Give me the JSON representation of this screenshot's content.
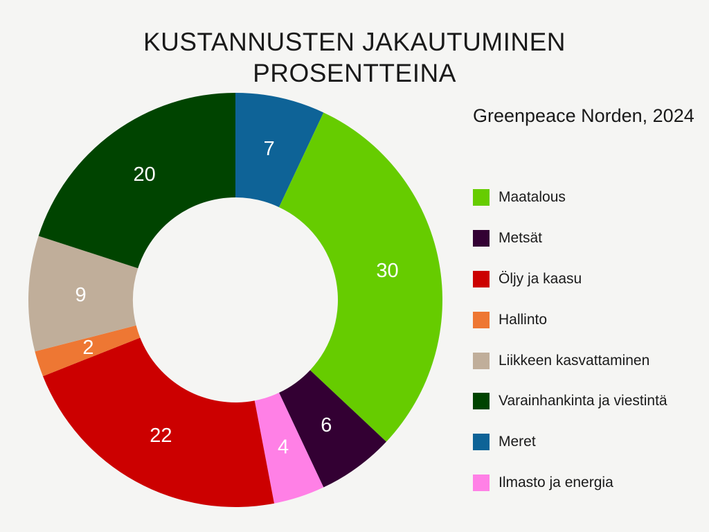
{
  "chart_data": {
    "type": "pie",
    "subtype": "donut",
    "title_lines": [
      "KUSTANNUSTEN JAKAUTUMINEN",
      "PROSENTTEINA"
    ],
    "legend_title": "Greenpeace Norden, 2024",
    "legend_position": "right",
    "slices": [
      {
        "name": "Meret",
        "value": 7,
        "color": "#0e6397"
      },
      {
        "name": "Maatalous",
        "value": 30,
        "color": "#66cc00"
      },
      {
        "name": "Metsät",
        "value": 6,
        "color": "#330033"
      },
      {
        "name": "Ilmasto ja energia",
        "value": 4,
        "color": "#ff80e6"
      },
      {
        "name": "Öljy ja kaasu",
        "value": 22,
        "color": "#cc0000"
      },
      {
        "name": "Hallinto",
        "value": 2,
        "color": "#ee7733"
      },
      {
        "name": "Liikkeen kasvattaminen",
        "value": 9,
        "color": "#c0ae9a"
      },
      {
        "name": "Varainhankinta ja viestintä",
        "value": 20,
        "color": "#004400"
      }
    ],
    "legend_order": [
      "Maatalous",
      "Metsät",
      "Öljy ja kaasu",
      "Hallinto",
      "Liikkeen kasvattaminen",
      "Varainhankinta ja viestintä",
      "Meret",
      "Ilmasto ja energia"
    ]
  }
}
